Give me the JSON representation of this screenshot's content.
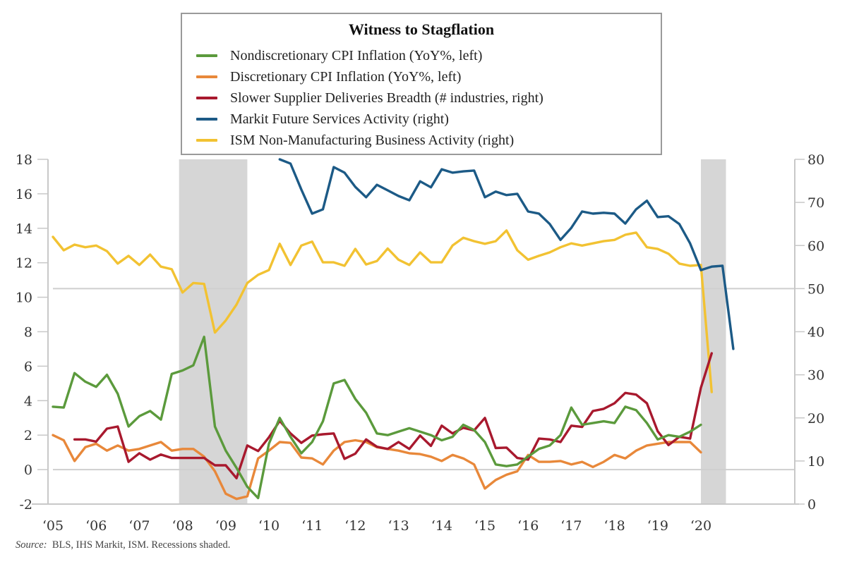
{
  "chart_data": {
    "type": "line",
    "title": "Witness to Stagflation",
    "source_label": "Source:",
    "source_text": "BLS, IHS Markit, ISM. Recessions shaded.",
    "x_tick_labels": [
      "‘05",
      "‘06",
      "‘07",
      "‘08",
      "‘09",
      "‘10",
      "‘11",
      "‘12",
      "‘13",
      "‘14",
      "‘15",
      "‘16",
      "‘17",
      "‘18",
      "‘19",
      "‘20"
    ],
    "x_tick_years": [
      2005,
      2006,
      2007,
      2008,
      2009,
      2010,
      2011,
      2012,
      2013,
      2014,
      2015,
      2016,
      2017,
      2018,
      2019,
      2020
    ],
    "xlim": [
      2005,
      2021.1
    ],
    "left_axis": {
      "ylim": [
        -2,
        18
      ],
      "ticks": [
        -2,
        0,
        2,
        4,
        6,
        8,
        10,
        12,
        14,
        16,
        18
      ]
    },
    "right_axis": {
      "ylim": [
        0,
        80
      ],
      "ticks": [
        0,
        10,
        20,
        30,
        40,
        50,
        60,
        70,
        80
      ]
    },
    "reference_lines": [
      {
        "axis": "right",
        "value": 50
      },
      {
        "axis": "left",
        "value": 0
      }
    ],
    "recessions": [
      [
        2007.92,
        2009.5
      ],
      [
        2020.0,
        2020.58
      ]
    ],
    "recession_color": "#d6d6d6",
    "frequency": "quarterly",
    "legend_position": "top-center",
    "series": [
      {
        "name": "Nondiscretionary CPI Inflation (YoY%, left)",
        "axis": "left",
        "color": "#5b9a3c",
        "start": 2005.0,
        "values": [
          3.65,
          3.6,
          5.6,
          5.1,
          4.8,
          5.5,
          4.4,
          2.5,
          3.1,
          3.4,
          2.9,
          5.55,
          5.75,
          6.05,
          7.7,
          2.5,
          1.1,
          0.1,
          -1.0,
          -1.65,
          1.5,
          3.0,
          1.9,
          0.95,
          1.6,
          2.8,
          5.0,
          5.2,
          4.1,
          3.3,
          2.1,
          2.0,
          2.2,
          2.4,
          2.2,
          2.0,
          1.7,
          1.9,
          2.6,
          2.3,
          1.6,
          0.3,
          0.2,
          0.3,
          0.75,
          1.2,
          1.4,
          2.0,
          3.6,
          2.6,
          2.7,
          2.8,
          2.7,
          3.65,
          3.45,
          2.7,
          1.75,
          2.0,
          1.9,
          2.2,
          2.6
        ]
      },
      {
        "name": "Discretionary CPI Inflation (YoY%, left)",
        "axis": "left",
        "color": "#e8883a",
        "start": 2005.0,
        "values": [
          2.0,
          1.7,
          0.5,
          1.3,
          1.5,
          1.1,
          1.4,
          1.1,
          1.2,
          1.4,
          1.6,
          1.1,
          1.2,
          1.2,
          0.75,
          -0.1,
          -1.4,
          -1.7,
          -1.55,
          0.65,
          1.1,
          1.6,
          1.55,
          0.7,
          0.65,
          0.3,
          1.1,
          1.6,
          1.7,
          1.6,
          1.3,
          1.2,
          1.1,
          0.95,
          0.9,
          0.75,
          0.5,
          0.85,
          0.65,
          0.3,
          -1.1,
          -0.6,
          -0.3,
          -0.1,
          0.85,
          0.45,
          0.45,
          0.5,
          0.3,
          0.45,
          0.15,
          0.45,
          0.85,
          0.65,
          1.1,
          1.4,
          1.5,
          1.6,
          1.6,
          1.6,
          1.0
        ]
      },
      {
        "name": "Slower Supplier Deliveries Breadth (# industries, right)",
        "axis": "right",
        "color": "#a8192e",
        "start": 2005.5,
        "values": [
          15,
          15,
          14.5,
          17.5,
          18,
          9.8,
          11.8,
          10.3,
          11.5,
          10.7,
          10.7,
          10.7,
          10.7,
          9,
          9,
          6,
          13.6,
          12.3,
          15.5,
          19.3,
          16.4,
          14.2,
          15.9,
          16.2,
          16.4,
          10.5,
          11.7,
          15,
          13.3,
          12.8,
          14.4,
          12.8,
          15.9,
          13.5,
          18.2,
          16.4,
          17.7,
          17.1,
          20,
          13,
          13.1,
          10.7,
          10.3,
          15.2,
          15,
          14.4,
          18.2,
          17.9,
          21.6,
          22.1,
          23.4,
          25.8,
          25.4,
          23.4,
          16.9,
          13.7,
          15.6,
          15.2,
          27,
          35
        ]
      },
      {
        "name": "Markit Future Services Activity (right)",
        "axis": "right",
        "color": "#1c5a86",
        "start": 2010.25,
        "values": [
          80,
          79,
          73,
          67.4,
          68.4,
          78.2,
          76.9,
          73.6,
          71.2,
          74.1,
          72.8,
          71.5,
          70.5,
          74.9,
          73.5,
          77.7,
          76.9,
          77.2,
          77.4,
          71.2,
          72.5,
          71.7,
          72,
          67.9,
          67.4,
          65,
          61.3,
          64.1,
          67.9,
          67.4,
          67.6,
          67.4,
          65.1,
          68.4,
          70.4,
          66.6,
          66.8,
          65,
          60.5,
          54.3,
          55.1,
          55.3,
          36
        ]
      },
      {
        "name": "ISM Non-Manufacturing Business Activity (right)",
        "axis": "right",
        "color": "#f2c232",
        "start": 2005.0,
        "values": [
          62,
          58.9,
          60.2,
          59.6,
          60,
          58.7,
          55.8,
          57.6,
          55.5,
          57.9,
          55.1,
          54.5,
          49.1,
          51.3,
          51.1,
          39.8,
          42.6,
          46.3,
          51.3,
          53.2,
          54.3,
          60.4,
          55.5,
          60,
          60.9,
          56.1,
          56.1,
          55.3,
          59.2,
          55.6,
          56.4,
          59.3,
          56.7,
          55.5,
          58.4,
          56.1,
          56.1,
          60,
          61.8,
          61,
          60.4,
          61,
          63.5,
          58.9,
          56.7,
          57.6,
          58.4,
          59.6,
          60.5,
          60,
          60.5,
          61,
          61.3,
          62.5,
          63,
          59.6,
          59.2,
          58.1,
          55.8,
          55.3,
          55.5,
          26
        ]
      }
    ]
  }
}
